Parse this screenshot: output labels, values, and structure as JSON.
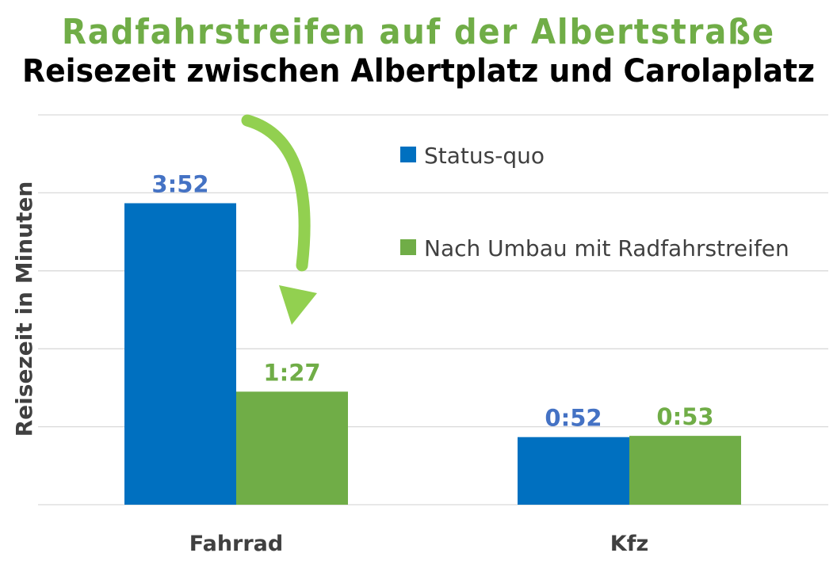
{
  "chart_data": {
    "type": "bar",
    "title": "Radfahrstreifen auf der Albertstraße",
    "subtitle": "Reisezeit zwischen Albertplatz und Carolaplatz",
    "ylabel": "Reisezeit in Minuten",
    "xlabel": "",
    "categories": [
      "Fahrrad",
      "Kfz"
    ],
    "ylim": [
      0,
      5
    ],
    "grid": true,
    "legend_position": "top-right",
    "series": [
      {
        "name": "Status-quo",
        "color": "#0070C0",
        "values": [
          3.867,
          0.867
        ],
        "labels": [
          "3:52",
          "0:52"
        ]
      },
      {
        "name": "Nach Umbau mit Radfahrstreifen",
        "color": "#70AD47",
        "values": [
          1.45,
          0.883
        ],
        "labels": [
          "1:27",
          "0:53"
        ]
      }
    ],
    "annotations": [
      {
        "type": "arrow",
        "color": "#92D050",
        "from_series": 0,
        "to_series": 1,
        "category": "Fahrrad"
      }
    ]
  },
  "colors": {
    "title": "#70AD47",
    "subtitle": "#000000",
    "label_blue": "#4472C4",
    "label_green": "#70AD47",
    "grid": "#D9D9D9",
    "axis_text": "#404040"
  }
}
